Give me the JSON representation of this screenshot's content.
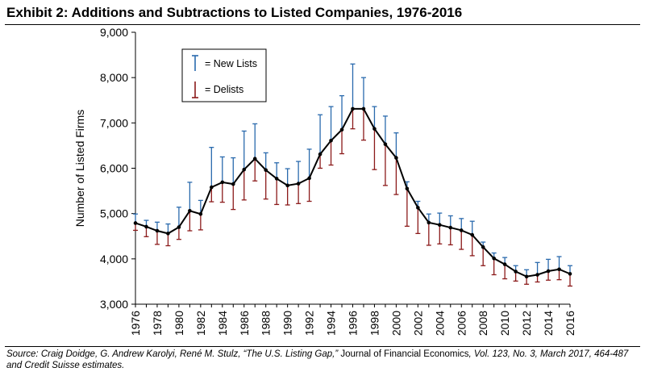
{
  "title": "Exhibit 2: Additions and Subtractions to Listed Companies, 1976-2016",
  "source": {
    "part1": "Source: Craig Doidge, G. Andrew Karolyi, René M. Stulz, “The U.S. Listing Gap,”",
    "journal": " Journal of Financial Economics",
    "part2": ", Vol. 123, No. 3, March 2017, 464-487 and Credit Suisse estimates."
  },
  "chart_data": {
    "type": "line",
    "xlabel": "",
    "ylabel": "Number of Listed Firms",
    "xlim": [
      1976,
      2016
    ],
    "ylim": [
      3000,
      9000
    ],
    "yticks": [
      3000,
      4000,
      5000,
      6000,
      7000,
      8000,
      9000
    ],
    "ytick_labels": [
      "3,000",
      "4,000",
      "5,000",
      "6,000",
      "7,000",
      "8,000",
      "9,000"
    ],
    "xticks": [
      1976,
      1978,
      1980,
      1982,
      1984,
      1986,
      1988,
      1990,
      1992,
      1994,
      1996,
      1998,
      2000,
      2002,
      2004,
      2006,
      2008,
      2010,
      2012,
      2014,
      2016
    ],
    "grid": false,
    "legend": {
      "position": "top-left",
      "entries": [
        {
          "label": "= New Lists",
          "color": "#2a6aad"
        },
        {
          "label": "= Delists",
          "color": "#8b1a1a"
        }
      ]
    },
    "colors": {
      "line": "#000000",
      "new_lists": "#2a6aad",
      "delists": "#8b1a1a"
    },
    "x": [
      1976,
      1977,
      1978,
      1979,
      1980,
      1981,
      1982,
      1983,
      1984,
      1985,
      1986,
      1987,
      1988,
      1989,
      1990,
      1991,
      1992,
      1993,
      1994,
      1995,
      1996,
      1997,
      1998,
      1999,
      2000,
      2001,
      2002,
      2003,
      2004,
      2005,
      2006,
      2007,
      2008,
      2009,
      2010,
      2011,
      2012,
      2013,
      2014,
      2015,
      2016
    ],
    "series": [
      {
        "values": [
          4790,
          4710,
          4620,
          4560,
          4700,
          5060,
          4990,
          5580,
          5690,
          5650,
          5970,
          6210,
          5960,
          5770,
          5620,
          5660,
          5780,
          6310,
          6610,
          6850,
          7310,
          7310,
          6870,
          6530,
          6230,
          5550,
          5130,
          4800,
          4750,
          4690,
          4630,
          4530,
          4260,
          4010,
          3880,
          3720,
          3610,
          3650,
          3730,
          3770,
          3670
        ]
      },
      {
        "name": "New Lists",
        "high": [
          4990,
          4850,
          4810,
          4770,
          5140,
          5690,
          5290,
          6460,
          6250,
          6230,
          6820,
          6980,
          6340,
          6120,
          5990,
          6150,
          6420,
          7180,
          7360,
          7600,
          8300,
          8000,
          7360,
          7150,
          6780,
          5700,
          5270,
          4990,
          5010,
          4950,
          4890,
          4830,
          4370,
          4130,
          4030,
          3850,
          3760,
          3920,
          3990,
          4050,
          3850
        ]
      },
      {
        "name": "Delists",
        "low": [
          4630,
          4490,
          4320,
          4290,
          4430,
          4620,
          4640,
          5260,
          5250,
          5090,
          5300,
          5720,
          5320,
          5200,
          5190,
          5220,
          5270,
          6000,
          6070,
          6320,
          6870,
          6620,
          5970,
          5620,
          5420,
          4720,
          4560,
          4300,
          4330,
          4310,
          4210,
          4070,
          3850,
          3650,
          3560,
          3510,
          3440,
          3490,
          3530,
          3540,
          3400
        ]
      }
    ]
  }
}
